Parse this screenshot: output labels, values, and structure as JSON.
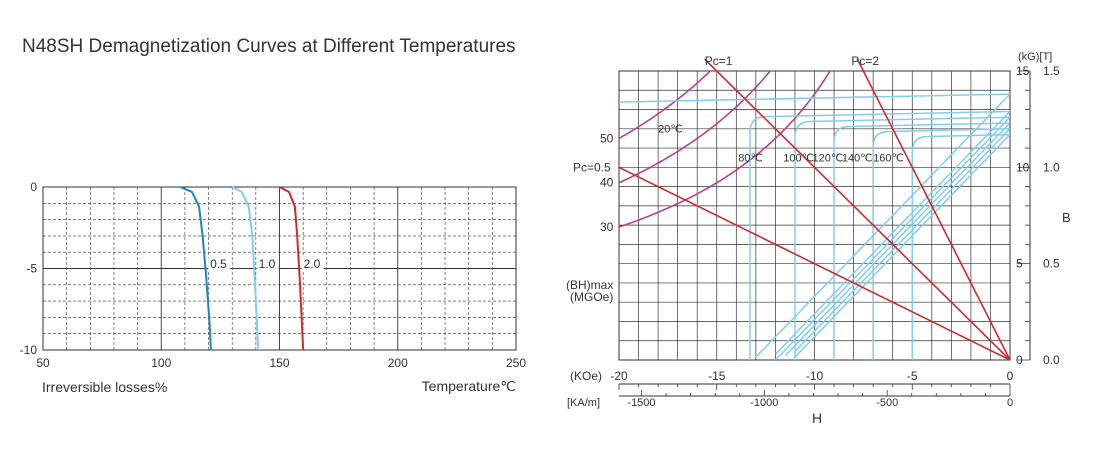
{
  "title": "N48SH Demagnetization Curves at Different Temperatures",
  "colors": {
    "line_red": "#cc2b2b",
    "line_lightblue": "#84cdea",
    "line_blue": "#1d85c2",
    "line_magenta": "#b4418f",
    "grid": "#333333"
  },
  "chart_data": [
    {
      "id": "irreversible-losses",
      "type": "line",
      "xlabel": "Temperature℃",
      "ylabel": "Irreversible losses%",
      "xlim": [
        50,
        250
      ],
      "ylim": [
        -10,
        0
      ],
      "x_ticks": [
        "50",
        "100",
        "150",
        "200",
        "250"
      ],
      "y_ticks": [
        "0",
        "-5",
        "-10"
      ],
      "grid": true,
      "series": [
        {
          "name": "0.5",
          "color": "#1d85c2",
          "x": [
            108,
            113,
            116,
            117.5,
            119,
            120.5,
            121
          ],
          "y": [
            0,
            -0.3,
            -1.2,
            -3,
            -5.5,
            -8.5,
            -10
          ]
        },
        {
          "name": "1.0",
          "color": "#84cdea",
          "x": [
            130,
            134,
            137,
            138.5,
            139.5,
            140.5,
            141
          ],
          "y": [
            0,
            -0.3,
            -1.2,
            -3,
            -5.5,
            -8.5,
            -10
          ]
        },
        {
          "name": "2.0",
          "color": "#cc2b2b",
          "x": [
            150,
            154,
            156.5,
            157.5,
            158.5,
            159.5,
            160
          ],
          "y": [
            0,
            -0.3,
            -1.2,
            -3,
            -5.5,
            -8.5,
            -10
          ]
        }
      ]
    },
    {
      "id": "demagnetization",
      "type": "line",
      "xlabel": "H",
      "ylabel": "B",
      "x_unit_koe": "(KOe)",
      "x_unit_kam": "[KA/m]",
      "y_unit": "(kG)[T]",
      "xlim": [
        -20,
        0
      ],
      "ylim": [
        0,
        15
      ],
      "x_ticks_koe": [
        "-20",
        "-15",
        "-10",
        "-5",
        "0"
      ],
      "x_ticks_kam": [
        {
          "value": -18.85,
          "label": "-1500"
        },
        {
          "value": -12.57,
          "label": "-1000"
        },
        {
          "value": -6.28,
          "label": "-500"
        },
        {
          "value": 0,
          "label": "0"
        }
      ],
      "y_ticks_kg": [
        "0",
        "5",
        "10",
        "15"
      ],
      "y_ticks_t": [
        "0.0",
        "0.5",
        "1.0",
        "1.5"
      ],
      "grid": true,
      "temperature_curves": [
        {
          "name": "20℃",
          "br": 13.8,
          "hcj": -20.5
        },
        {
          "name": "80℃",
          "br": 12.9,
          "hcj": -13.3
        },
        {
          "name": "100℃",
          "br": 12.6,
          "hcj": -11.0
        },
        {
          "name": "120℃",
          "br": 12.3,
          "hcj": -9.0
        },
        {
          "name": "140℃",
          "br": 12.0,
          "hcj": -7.0
        },
        {
          "name": "160℃",
          "br": 11.7,
          "hcj": -5.0
        }
      ],
      "load_lines": [
        {
          "name": "Pc=0.5",
          "x_top": -20,
          "y_top": 10
        },
        {
          "name": "Pc=1",
          "x_top": -15,
          "y_top": 15
        },
        {
          "name": "Pc=2",
          "x_top": -7.5,
          "y_top": 15
        }
      ],
      "energy_product_label": [
        "(BH)max",
        "(MGOe)"
      ],
      "energy_product_curves": [
        {
          "name": "50",
          "value": 50
        },
        {
          "name": "40",
          "value": 40
        },
        {
          "name": "30",
          "value": 30
        }
      ]
    }
  ]
}
